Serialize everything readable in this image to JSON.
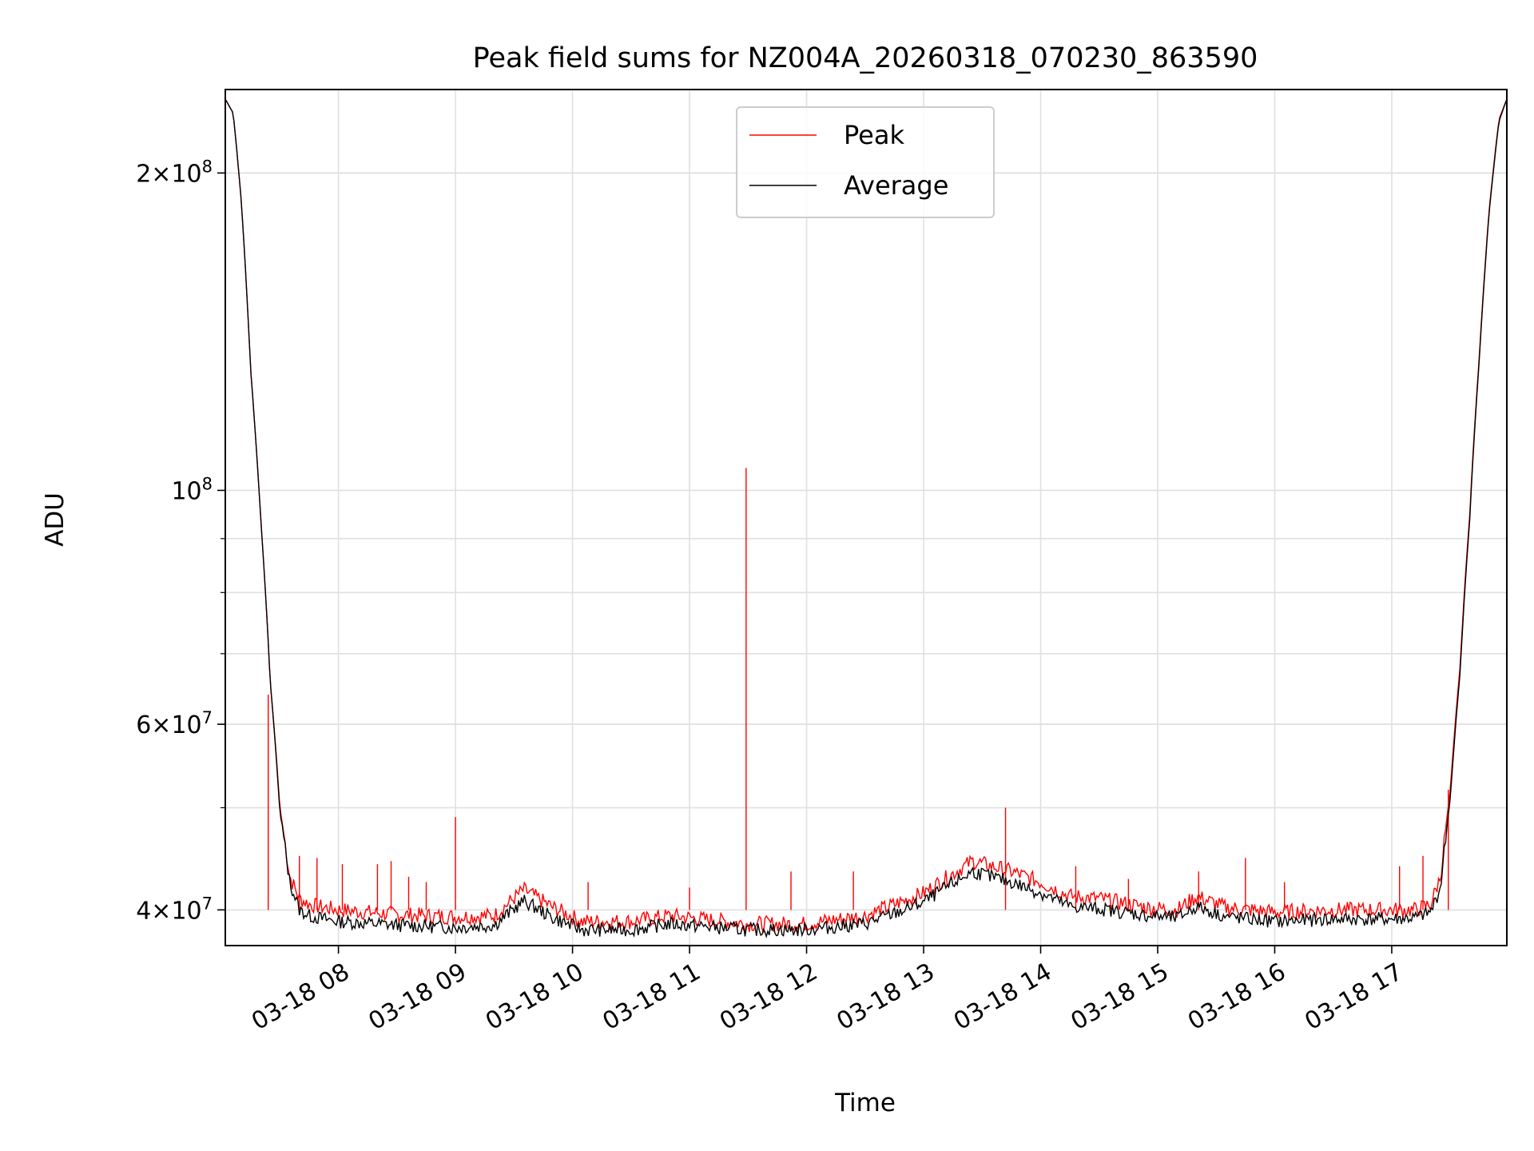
{
  "chart_data": {
    "type": "line",
    "title": "Peak field sums for NZ004A_20260318_070230_863590",
    "xlabel": "Time",
    "ylabel": "ADU",
    "yscale": "log",
    "grid": true,
    "legend_position": "upper center",
    "x_tick_labels": [
      "03-18 08",
      "03-18 09",
      "03-18 10",
      "03-18 11",
      "03-18 12",
      "03-18 13",
      "03-18 14",
      "03-18 15",
      "03-18 16",
      "03-18 17"
    ],
    "x_tick_values": [
      "2026-03-18 08:00",
      "2026-03-18 09:00",
      "2026-03-18 10:00",
      "2026-03-18 11:00",
      "2026-03-18 12:00",
      "2026-03-18 13:00",
      "2026-03-18 14:00",
      "2026-03-18 15:00",
      "2026-03-18 16:00",
      "2026-03-18 17:00"
    ],
    "xlim": [
      "2026-03-18 07:02",
      "2026-03-18 17:59"
    ],
    "y_tick_labels": [
      {
        "mantissa": "2",
        "exponent": "8",
        "value": 200000000
      },
      {
        "mantissa": "",
        "exponent": "8",
        "value": 100000000
      },
      {
        "mantissa": "6",
        "exponent": "7",
        "value": 60000000
      },
      {
        "mantissa": "4",
        "exponent": "7",
        "value": 40000000
      }
    ],
    "ylim": [
      37000000,
      240000000
    ],
    "colors": {
      "Peak": "#ff0000",
      "Average": "#000000"
    },
    "series": [
      {
        "name": "Peak",
        "color": "#ff0000",
        "x": [
          "2026-03-18 07:02",
          "2026-03-18 07:06",
          "2026-03-18 07:10",
          "2026-03-18 07:15",
          "2026-03-18 07:20",
          "2026-03-18 07:25",
          "2026-03-18 07:30",
          "2026-03-18 07:35",
          "2026-03-18 07:40",
          "2026-03-18 07:45",
          "2026-03-18 07:50",
          "2026-03-18 08:00",
          "2026-03-18 08:30",
          "2026-03-18 09:00",
          "2026-03-18 09:20",
          "2026-03-18 09:35",
          "2026-03-18 09:50",
          "2026-03-18 10:05",
          "2026-03-18 10:30",
          "2026-03-18 10:50",
          "2026-03-18 11:30",
          "2026-03-18 11:59",
          "2026-03-18 12:30",
          "2026-03-18 12:50",
          "2026-03-18 13:00",
          "2026-03-18 13:25",
          "2026-03-18 13:45",
          "2026-03-18 14:00",
          "2026-03-18 14:15",
          "2026-03-18 14:30",
          "2026-03-18 14:55",
          "2026-03-18 15:10",
          "2026-03-18 15:20",
          "2026-03-18 15:35",
          "2026-03-18 16:00",
          "2026-03-18 16:30",
          "2026-03-18 17:00",
          "2026-03-18 17:12",
          "2026-03-18 17:20",
          "2026-03-18 17:25",
          "2026-03-18 17:30",
          "2026-03-18 17:35",
          "2026-03-18 17:40",
          "2026-03-18 17:45",
          "2026-03-18 17:50",
          "2026-03-18 17:55",
          "2026-03-18 17:59"
        ],
        "y": [
          235000000,
          228000000,
          190000000,
          130000000,
          95000000,
          66000000,
          50000000,
          43000000,
          41000000,
          40500000,
          40300000,
          40000000,
          39600000,
          39400000,
          39500000,
          41800000,
          40200000,
          39000000,
          39000000,
          39500000,
          38800000,
          38800000,
          39500000,
          40800000,
          41500000,
          44500000,
          43500000,
          42500000,
          41200000,
          41000000,
          40200000,
          40000000,
          41200000,
          40200000,
          39800000,
          40000000,
          40000000,
          40000000,
          40500000,
          43000000,
          52000000,
          68000000,
          95000000,
          135000000,
          185000000,
          225000000,
          235000000
        ],
        "spikes": [
          {
            "x": "2026-03-18 07:24",
            "y": 64000000
          },
          {
            "x": "2026-03-18 07:40",
            "y": 45000000
          },
          {
            "x": "2026-03-18 07:49",
            "y": 44800000
          },
          {
            "x": "2026-03-18 08:02",
            "y": 44200000
          },
          {
            "x": "2026-03-18 08:20",
            "y": 44200000
          },
          {
            "x": "2026-03-18 08:27",
            "y": 44500000
          },
          {
            "x": "2026-03-18 08:36",
            "y": 43000000
          },
          {
            "x": "2026-03-18 08:45",
            "y": 42500000
          },
          {
            "x": "2026-03-18 09:00",
            "y": 49000000
          },
          {
            "x": "2026-03-18 10:08",
            "y": 42500000
          },
          {
            "x": "2026-03-18 11:00",
            "y": 42000000
          },
          {
            "x": "2026-03-18 11:29",
            "y": 105000000
          },
          {
            "x": "2026-03-18 11:52",
            "y": 43500000
          },
          {
            "x": "2026-03-18 12:24",
            "y": 43500000
          },
          {
            "x": "2026-03-18 13:42",
            "y": 50000000
          },
          {
            "x": "2026-03-18 14:18",
            "y": 44000000
          },
          {
            "x": "2026-03-18 14:45",
            "y": 42800000
          },
          {
            "x": "2026-03-18 15:21",
            "y": 43500000
          },
          {
            "x": "2026-03-18 15:45",
            "y": 44800000
          },
          {
            "x": "2026-03-18 16:05",
            "y": 42500000
          },
          {
            "x": "2026-03-18 17:04",
            "y": 44000000
          },
          {
            "x": "2026-03-18 17:16",
            "y": 45000000
          },
          {
            "x": "2026-03-18 17:29",
            "y": 52000000
          }
        ]
      },
      {
        "name": "Average",
        "color": "#000000",
        "x": [
          "2026-03-18 07:02",
          "2026-03-18 07:06",
          "2026-03-18 07:10",
          "2026-03-18 07:15",
          "2026-03-18 07:20",
          "2026-03-18 07:25",
          "2026-03-18 07:30",
          "2026-03-18 07:35",
          "2026-03-18 07:40",
          "2026-03-18 07:45",
          "2026-03-18 07:50",
          "2026-03-18 08:00",
          "2026-03-18 08:30",
          "2026-03-18 09:00",
          "2026-03-18 09:20",
          "2026-03-18 09:35",
          "2026-03-18 09:50",
          "2026-03-18 10:05",
          "2026-03-18 10:30",
          "2026-03-18 10:50",
          "2026-03-18 11:30",
          "2026-03-18 11:59",
          "2026-03-18 12:30",
          "2026-03-18 12:50",
          "2026-03-18 13:00",
          "2026-03-18 13:25",
          "2026-03-18 13:45",
          "2026-03-18 14:00",
          "2026-03-18 14:15",
          "2026-03-18 14:30",
          "2026-03-18 14:55",
          "2026-03-18 15:10",
          "2026-03-18 15:20",
          "2026-03-18 15:35",
          "2026-03-18 16:00",
          "2026-03-18 16:30",
          "2026-03-18 17:00",
          "2026-03-18 17:12",
          "2026-03-18 17:20",
          "2026-03-18 17:25",
          "2026-03-18 17:30",
          "2026-03-18 17:35",
          "2026-03-18 17:40",
          "2026-03-18 17:45",
          "2026-03-18 17:50",
          "2026-03-18 17:55",
          "2026-03-18 17:59"
        ],
        "y": [
          235000000,
          228000000,
          190000000,
          130000000,
          95000000,
          66000000,
          49500000,
          42500000,
          40000000,
          39500000,
          39300000,
          39000000,
          38700000,
          38500000,
          38700000,
          40800000,
          39300000,
          38300000,
          38300000,
          38800000,
          38300000,
          38300000,
          38800000,
          40000000,
          40700000,
          43500000,
          42500000,
          41500000,
          40300000,
          40100000,
          39500000,
          39300000,
          40300000,
          39400000,
          39000000,
          39200000,
          39200000,
          39300000,
          39800000,
          42000000,
          51000000,
          67000000,
          94000000,
          134000000,
          184000000,
          224000000,
          235000000
        ]
      }
    ]
  }
}
